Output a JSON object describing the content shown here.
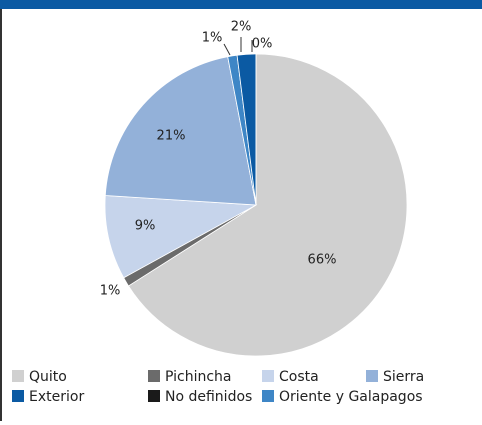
{
  "chart_data": {
    "type": "pie",
    "categories": [
      "Quito",
      "Pichincha",
      "Costa",
      "Sierra",
      "Oriente y Galapagos",
      "Exterior",
      "No definidos"
    ],
    "values": [
      66,
      1,
      9,
      21,
      1,
      2,
      0
    ],
    "value_labels": [
      "66%",
      "1%",
      "9%",
      "21%",
      "1%",
      "2%",
      "0%"
    ],
    "colors": [
      "#d0d0d0",
      "#6b6b6b",
      "#c6d4eb",
      "#93b1d9",
      "#3e86c6",
      "#0b5aa3",
      "#1a1a1a"
    ],
    "legend": "bottom"
  }
}
